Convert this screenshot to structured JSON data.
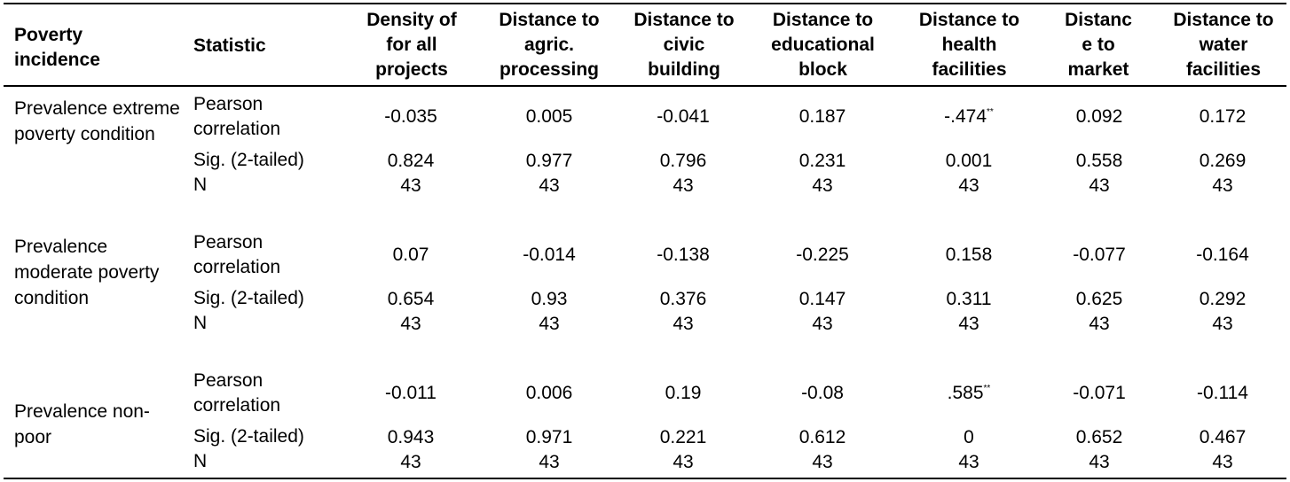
{
  "header": {
    "incidence": "Poverty incidence",
    "statistic": "Statistic",
    "columns": [
      "Density of for all projects",
      "Distance to agric. processing",
      "Distance to civic building",
      "Distance to educational block",
      "Distance to health facilities",
      "Distanc e to market",
      "Distance to water facilities"
    ]
  },
  "groups": [
    {
      "incidence": "Prevalence extreme poverty condition",
      "rows": [
        {
          "stat": "Pearson correlation",
          "values": [
            "-0.035",
            "0.005",
            "-0.041",
            "0.187",
            "-.474",
            "0.092",
            "0.172"
          ],
          "marks": [
            "",
            "",
            "",
            "",
            "**",
            "",
            ""
          ]
        },
        {
          "stat": "Sig. (2-tailed)",
          "values": [
            "0.824",
            "0.977",
            "0.796",
            "0.231",
            "0.001",
            "0.558",
            "0.269"
          ],
          "marks": [
            "",
            "",
            "",
            "",
            "",
            "",
            ""
          ]
        },
        {
          "stat": "N",
          "values": [
            "43",
            "43",
            "43",
            "43",
            "43",
            "43",
            "43"
          ],
          "marks": [
            "",
            "",
            "",
            "",
            "",
            "",
            ""
          ]
        }
      ]
    },
    {
      "incidence": "Prevalence moderate poverty condition",
      "rows": [
        {
          "stat": "Pearson correlation",
          "values": [
            "0.07",
            "-0.014",
            "-0.138",
            "-0.225",
            "0.158",
            "-0.077",
            "-0.164"
          ],
          "marks": [
            "",
            "",
            "",
            "",
            "",
            "",
            ""
          ]
        },
        {
          "stat": "Sig. (2-tailed)",
          "values": [
            "0.654",
            "0.93",
            "0.376",
            "0.147",
            "0.311",
            "0.625",
            "0.292"
          ],
          "marks": [
            "",
            "",
            "",
            "",
            "",
            "",
            ""
          ]
        },
        {
          "stat": "N",
          "values": [
            "43",
            "43",
            "43",
            "43",
            "43",
            "43",
            "43"
          ],
          "marks": [
            "",
            "",
            "",
            "",
            "",
            "",
            ""
          ]
        }
      ]
    },
    {
      "incidence": "Prevalence non-poor",
      "rows": [
        {
          "stat": "Pearson correlation",
          "values": [
            "-0.011",
            "0.006",
            "0.19",
            "-0.08",
            ".585",
            "-0.071",
            "-0.114"
          ],
          "marks": [
            "",
            "",
            "",
            "",
            "**",
            "",
            ""
          ]
        },
        {
          "stat": "Sig. (2-tailed)",
          "values": [
            "0.943",
            "0.971",
            "0.221",
            "0.612",
            "0",
            "0.652",
            "0.467"
          ],
          "marks": [
            "",
            "",
            "",
            "",
            "",
            "",
            ""
          ]
        },
        {
          "stat": "N",
          "values": [
            "43",
            "43",
            "43",
            "43",
            "43",
            "43",
            "43"
          ],
          "marks": [
            "",
            "",
            "",
            "",
            "",
            "",
            ""
          ]
        }
      ]
    }
  ]
}
